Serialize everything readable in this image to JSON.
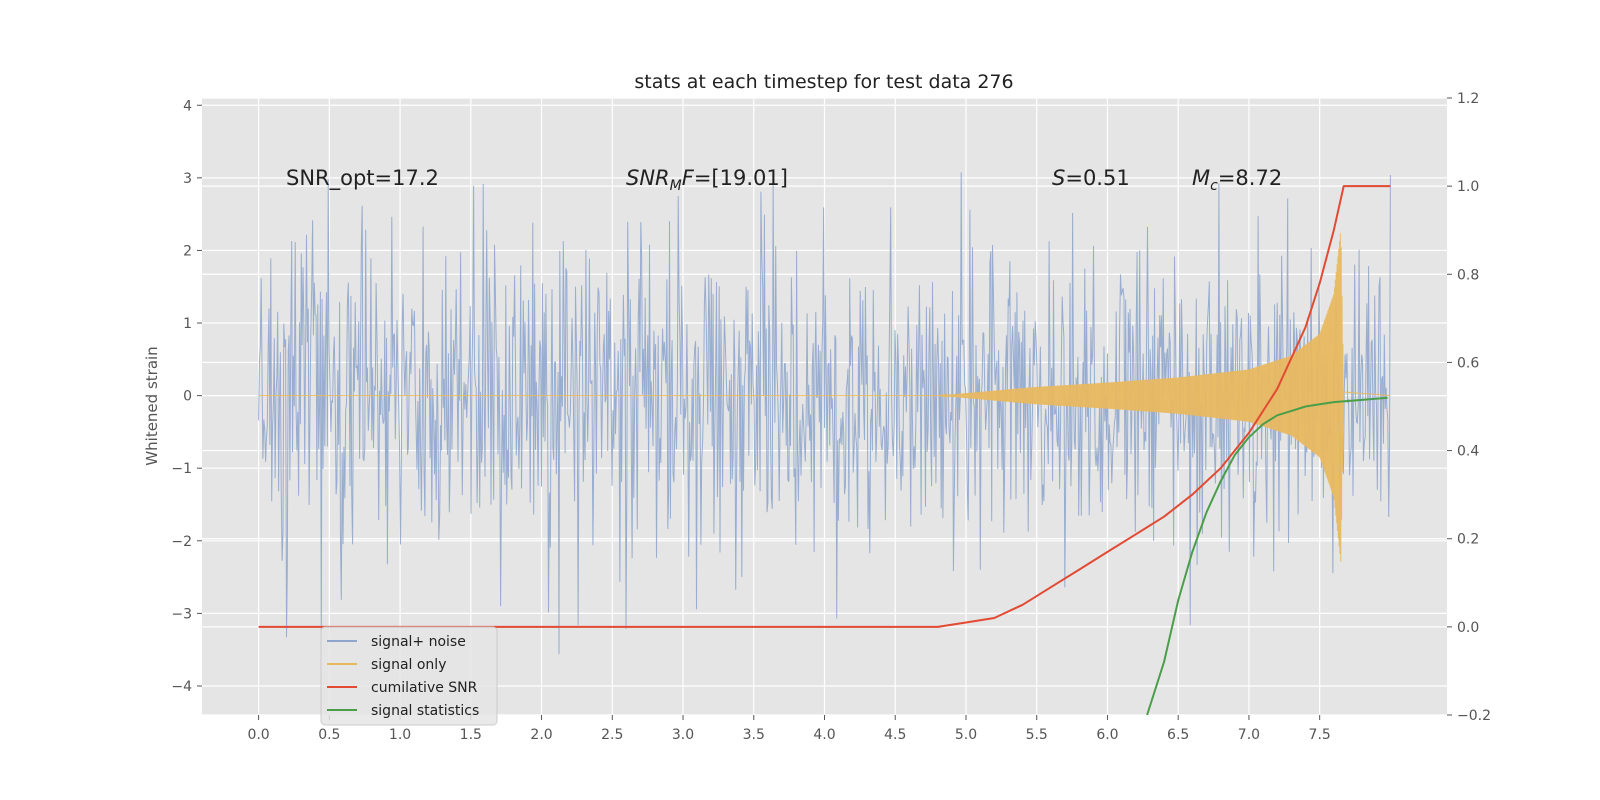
{
  "chart_data": {
    "type": "line",
    "title": "stats at each timestep for test data 276",
    "ylabel": "Whitened strain",
    "xlabel": "",
    "xlim": [
      -0.4,
      8.4
    ],
    "ylim_left": [
      -4.4,
      4.1
    ],
    "ylim_right": [
      -0.2,
      1.2
    ],
    "grid": true,
    "legend_position": "lower-left",
    "x_ticks": [
      "0.0",
      "0.5",
      "1.0",
      "1.5",
      "2.0",
      "2.5",
      "3.0",
      "3.5",
      "4.0",
      "4.5",
      "5.0",
      "5.5",
      "6.0",
      "6.5",
      "7.0",
      "7.5"
    ],
    "y_ticks_left": [
      "−4",
      "−3",
      "−2",
      "−1",
      "0",
      "1",
      "2",
      "3",
      "4"
    ],
    "y_ticks_right": [
      "−0.2",
      "0.0",
      "0.2",
      "0.4",
      "0.6",
      "0.8",
      "1.0",
      "1.2"
    ],
    "annotations": [
      {
        "id": "snr-opt",
        "text": "SNR_opt=17.2",
        "x": 0.2,
        "y": 2.9
      },
      {
        "id": "snr-mf",
        "text": "SNR_M F=[19.01]",
        "x": 2.6,
        "y": 2.9
      },
      {
        "id": "s-value",
        "text": "S=0.51",
        "x": 5.6,
        "y": 2.9
      },
      {
        "id": "mc-value",
        "text": "M_c=8.72",
        "x": 6.6,
        "y": 2.9
      }
    ],
    "series": [
      {
        "name": "signal+ noise",
        "color": "#8fa6cc",
        "axis": "left",
        "kind": "noise",
        "x_range": [
          0,
          8.0
        ],
        "amplitude_typical": 1.7,
        "amplitude_peak": 3.75
      },
      {
        "name": "signal only",
        "color": "#e8b860",
        "axis": "left",
        "kind": "chirp",
        "x_range": [
          0,
          7.67
        ],
        "envelope": {
          "x": [
            0,
            4.8,
            5.5,
            6.0,
            6.5,
            7.0,
            7.3,
            7.5,
            7.6,
            7.65,
            7.67
          ],
          "y": [
            0.0,
            0.0,
            0.12,
            0.18,
            0.25,
            0.36,
            0.55,
            0.85,
            1.4,
            2.3,
            0.05
          ]
        }
      },
      {
        "name": "cumilative SNR",
        "color": "#e24a33",
        "axis": "right",
        "x": [
          0,
          2.0,
          4.0,
          4.8,
          5.0,
          5.2,
          5.4,
          5.6,
          5.8,
          6.0,
          6.2,
          6.4,
          6.6,
          6.8,
          7.0,
          7.2,
          7.4,
          7.5,
          7.6,
          7.67,
          7.7,
          8.0
        ],
        "y": [
          0.0,
          0.0,
          0.0,
          0.0,
          0.01,
          0.02,
          0.05,
          0.09,
          0.13,
          0.17,
          0.21,
          0.25,
          0.3,
          0.36,
          0.44,
          0.54,
          0.68,
          0.78,
          0.9,
          1.0,
          1.0,
          1.0
        ]
      },
      {
        "name": "signal statistics",
        "color": "#4a9e4a",
        "axis": "right",
        "x": [
          6.28,
          6.4,
          6.5,
          6.6,
          6.7,
          6.8,
          6.9,
          7.0,
          7.1,
          7.2,
          7.3,
          7.4,
          7.5,
          7.6,
          7.8,
          7.98
        ],
        "y": [
          -0.2,
          -0.08,
          0.06,
          0.17,
          0.26,
          0.33,
          0.39,
          0.43,
          0.46,
          0.48,
          0.49,
          0.5,
          0.505,
          0.51,
          0.515,
          0.52
        ]
      }
    ]
  }
}
